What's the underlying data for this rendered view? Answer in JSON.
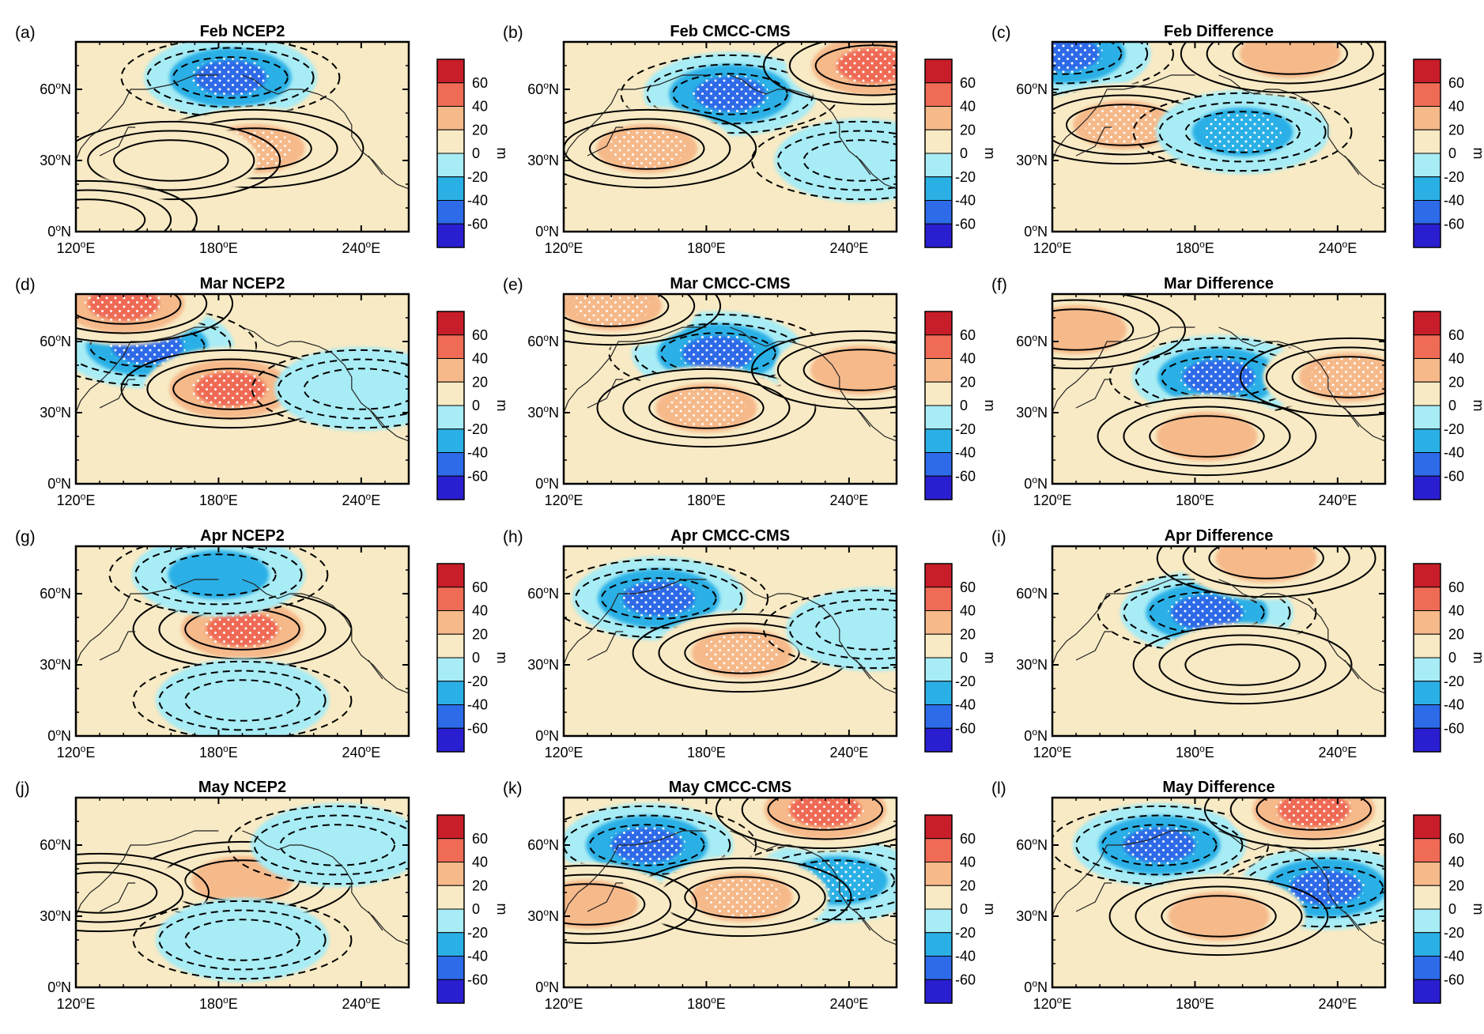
{
  "chart_data": {
    "type": "heatmap",
    "figure_description_units": "m",
    "colorbar": {
      "levels": [
        -60,
        -40,
        -20,
        0,
        20,
        40,
        60
      ],
      "labels": [
        "60",
        "40",
        "20",
        "0",
        "-20",
        "-40",
        "-60"
      ],
      "unit": "m",
      "colors": [
        "#2a1fd0",
        "#2d6be8",
        "#2bb0e6",
        "#a8ecf5",
        "#f8eac4",
        "#f6b98a",
        "#ef6b55",
        "#c81e2a"
      ]
    },
    "axes": {
      "x_ticks": [
        "120°E",
        "180°E",
        "240°E"
      ],
      "x_values": [
        120,
        180,
        240
      ],
      "y_ticks": [
        "60°N",
        "30°N",
        "0°N"
      ],
      "y_values": [
        60,
        30,
        0
      ],
      "xlim": [
        120,
        260
      ],
      "ylim": [
        0,
        80
      ]
    },
    "panels": [
      {
        "label": "(a)",
        "title": "Feb NCEP2",
        "month": "Feb",
        "source": "NCEP2",
        "anomalies": [
          {
            "lon": 185,
            "lat": 65,
            "value": -60
          },
          {
            "lon": 195,
            "lat": 35,
            "value": 45
          },
          {
            "lon": 160,
            "lat": 30,
            "value": 25
          },
          {
            "lon": 125,
            "lat": 5,
            "value": 10
          }
        ]
      },
      {
        "label": "(b)",
        "title": "Feb CMCC-CMS",
        "month": "Feb",
        "source": "CMCC-CMS",
        "anomalies": [
          {
            "lon": 190,
            "lat": 58,
            "value": -50
          },
          {
            "lon": 155,
            "lat": 35,
            "value": 45
          },
          {
            "lon": 250,
            "lat": 70,
            "value": 60
          },
          {
            "lon": 245,
            "lat": 30,
            "value": -25
          }
        ]
      },
      {
        "label": "(c)",
        "title": "Feb Difference",
        "month": "Feb",
        "source": "Difference",
        "anomalies": [
          {
            "lon": 125,
            "lat": 75,
            "value": -55
          },
          {
            "lon": 150,
            "lat": 45,
            "value": 45
          },
          {
            "lon": 200,
            "lat": 42,
            "value": -45
          },
          {
            "lon": 220,
            "lat": 75,
            "value": 35
          }
        ]
      },
      {
        "label": "(d)",
        "title": "Mar NCEP2",
        "month": "Mar",
        "source": "NCEP2",
        "anomalies": [
          {
            "lon": 150,
            "lat": 58,
            "value": -50
          },
          {
            "lon": 185,
            "lat": 40,
            "value": 60
          },
          {
            "lon": 240,
            "lat": 40,
            "value": -25
          },
          {
            "lon": 140,
            "lat": 76,
            "value": 55
          }
        ]
      },
      {
        "label": "(e)",
        "title": "Mar CMCC-CMS",
        "month": "Mar",
        "source": "CMCC-CMS",
        "anomalies": [
          {
            "lon": 185,
            "lat": 55,
            "value": -55
          },
          {
            "lon": 180,
            "lat": 32,
            "value": 45
          },
          {
            "lon": 245,
            "lat": 48,
            "value": 30
          },
          {
            "lon": 140,
            "lat": 75,
            "value": 45
          }
        ]
      },
      {
        "label": "(f)",
        "title": "Mar Difference",
        "month": "Mar",
        "source": "Difference",
        "anomalies": [
          {
            "lon": 190,
            "lat": 45,
            "value": -65
          },
          {
            "lon": 185,
            "lat": 20,
            "value": 30
          },
          {
            "lon": 245,
            "lat": 45,
            "value": 45
          },
          {
            "lon": 130,
            "lat": 65,
            "value": 35
          }
        ]
      },
      {
        "label": "(g)",
        "title": "Apr NCEP2",
        "month": "Apr",
        "source": "NCEP2",
        "anomalies": [
          {
            "lon": 190,
            "lat": 45,
            "value": 50
          },
          {
            "lon": 180,
            "lat": 68,
            "value": -30
          },
          {
            "lon": 190,
            "lat": 15,
            "value": -20
          }
        ]
      },
      {
        "label": "(h)",
        "title": "Apr CMCC-CMS",
        "month": "Apr",
        "source": "CMCC-CMS",
        "anomalies": [
          {
            "lon": 160,
            "lat": 58,
            "value": -50
          },
          {
            "lon": 195,
            "lat": 35,
            "value": 45
          },
          {
            "lon": 250,
            "lat": 45,
            "value": -25
          }
        ]
      },
      {
        "label": "(i)",
        "title": "Apr Difference",
        "month": "Apr",
        "source": "Difference",
        "anomalies": [
          {
            "lon": 185,
            "lat": 52,
            "value": -60
          },
          {
            "lon": 210,
            "lat": 75,
            "value": 30
          },
          {
            "lon": 200,
            "lat": 30,
            "value": 25
          }
        ]
      },
      {
        "label": "(j)",
        "title": "May NCEP2",
        "month": "May",
        "source": "NCEP2",
        "anomalies": [
          {
            "lon": 190,
            "lat": 45,
            "value": 30
          },
          {
            "lon": 130,
            "lat": 40,
            "value": 25
          },
          {
            "lon": 230,
            "lat": 60,
            "value": -25
          },
          {
            "lon": 190,
            "lat": 20,
            "value": -20
          }
        ]
      },
      {
        "label": "(k)",
        "title": "May CMCC-CMS",
        "month": "May",
        "source": "CMCC-CMS",
        "anomalies": [
          {
            "lon": 155,
            "lat": 60,
            "value": -50
          },
          {
            "lon": 235,
            "lat": 45,
            "value": -45
          },
          {
            "lon": 230,
            "lat": 75,
            "value": 50
          },
          {
            "lon": 195,
            "lat": 38,
            "value": 45
          },
          {
            "lon": 130,
            "lat": 35,
            "value": 30
          }
        ]
      },
      {
        "label": "(l)",
        "title": "May Difference",
        "month": "May",
        "source": "Difference",
        "anomalies": [
          {
            "lon": 165,
            "lat": 60,
            "value": -65
          },
          {
            "lon": 235,
            "lat": 42,
            "value": -50
          },
          {
            "lon": 230,
            "lat": 75,
            "value": 50
          },
          {
            "lon": 190,
            "lat": 30,
            "value": 30
          }
        ]
      }
    ]
  }
}
